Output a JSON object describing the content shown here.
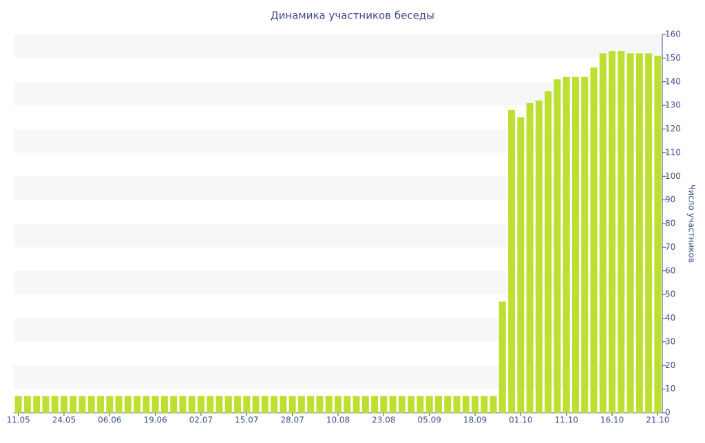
{
  "chart_data": {
    "type": "bar",
    "title": "Динамика участников беседы",
    "y_label": "Число участников",
    "categories": [
      "11.05",
      null,
      null,
      null,
      null,
      "24.05",
      null,
      null,
      null,
      null,
      "06.06",
      null,
      null,
      null,
      null,
      "19.06",
      null,
      null,
      null,
      null,
      "02.07",
      null,
      null,
      null,
      null,
      "15.07",
      null,
      null,
      null,
      null,
      "28.07",
      null,
      null,
      null,
      null,
      "10.08",
      null,
      null,
      null,
      null,
      "23.08",
      null,
      null,
      null,
      null,
      "05.09",
      null,
      null,
      null,
      null,
      "18.09",
      null,
      null,
      null,
      null,
      "01.10",
      null,
      null,
      null,
      null,
      "11.10",
      null,
      null,
      null,
      null,
      "16.10",
      null,
      null,
      null,
      null,
      "21.10"
    ],
    "values": [
      7,
      7,
      7,
      7,
      7,
      7,
      7,
      7,
      7,
      7,
      7,
      7,
      7,
      7,
      7,
      7,
      7,
      7,
      7,
      7,
      7,
      7,
      7,
      7,
      7,
      7,
      7,
      7,
      7,
      7,
      7,
      7,
      7,
      7,
      7,
      7,
      7,
      7,
      7,
      7,
      7,
      7,
      7,
      7,
      7,
      7,
      7,
      7,
      7,
      7,
      7,
      7,
      7,
      47,
      128,
      125,
      131,
      132,
      136,
      141,
      142,
      142,
      142,
      146,
      152,
      153,
      153,
      152,
      152,
      152,
      151
    ],
    "color": "#bde030",
    "ylim": [
      0,
      160
    ],
    "yticks": [
      0,
      10,
      20,
      30,
      40,
      50,
      60,
      70,
      80,
      90,
      100,
      110,
      120,
      130,
      140,
      150,
      160
    ],
    "y_axis_side": "right",
    "bands": true
  }
}
